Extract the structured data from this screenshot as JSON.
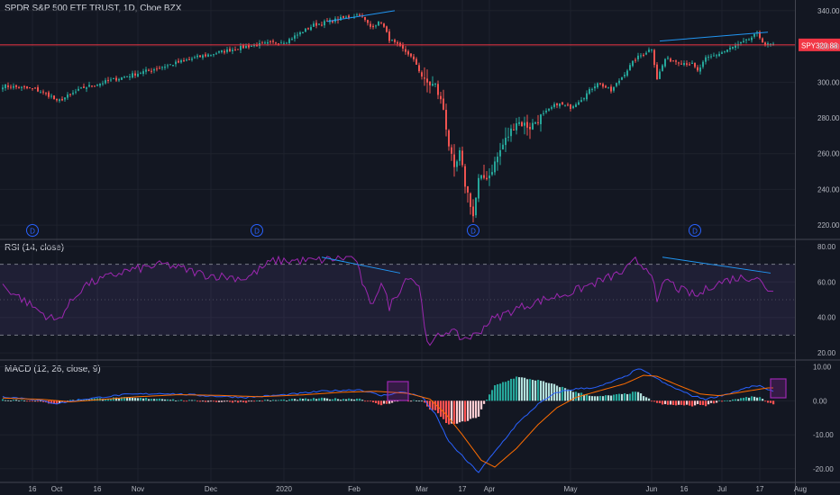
{
  "header": {
    "title": "SPDR S&P 500 ETF TRUST, 1D, Cboe BZX"
  },
  "price_label": {
    "symbol": "SPY",
    "value": "320.88"
  },
  "panes": {
    "rsi": {
      "title": "RSI (14, close)"
    },
    "macd": {
      "title": "MACD (12, 26, close, 9)"
    }
  },
  "colors": {
    "background": "#131722",
    "up": "#26a69a",
    "down": "#ef5350",
    "text": "#b2b5be",
    "trendline": "#2196f3",
    "rsi_line": "#9c27b0",
    "rsi_band": "#7e57c2",
    "macd_line": "#2962ff",
    "signal_line": "#ff6d00",
    "hist_up_strong": "#26a69a",
    "hist_up_weak": "#b2dfdb",
    "hist_down_strong": "#ff5252",
    "hist_down_weak": "#ffcdd2",
    "price_line": "#f23645",
    "dividend_marker": "#2962ff"
  },
  "chart_data": [
    {
      "type": "candlestick",
      "name": "price",
      "x_labels": [
        "16",
        "Oct",
        "16",
        "Nov",
        "Dec",
        "2020",
        "Feb",
        "Mar",
        "17",
        "Apr",
        "May",
        "Jun",
        "16",
        "Jul",
        "17",
        "Aug"
      ],
      "y_ticks": [
        "340.00",
        "320.00",
        "300.00",
        "280.00",
        "260.00",
        "240.00",
        "220.00"
      ],
      "ylim": [
        212,
        346
      ],
      "last_price": 320.88,
      "dividend_markers": [
        "D",
        "D",
        "D",
        "D"
      ],
      "keypoints": [
        [
          0,
          298
        ],
        [
          12,
          296
        ],
        [
          18,
          292
        ],
        [
          20,
          289
        ],
        [
          30,
          297
        ],
        [
          45,
          303
        ],
        [
          60,
          309
        ],
        [
          72,
          314
        ],
        [
          90,
          320
        ],
        [
          105,
          323
        ],
        [
          115,
          332
        ],
        [
          132,
          338
        ],
        [
          136,
          331
        ],
        [
          140,
          334
        ],
        [
          143,
          324
        ],
        [
          150,
          316
        ],
        [
          153,
          310
        ],
        [
          156,
          300
        ],
        [
          160,
          298
        ],
        [
          163,
          285
        ],
        [
          165,
          265
        ],
        [
          167,
          250
        ],
        [
          169,
          260
        ],
        [
          171,
          243
        ],
        [
          173,
          232
        ],
        [
          174,
          225
        ],
        [
          176,
          245
        ],
        [
          180,
          248
        ],
        [
          185,
          265
        ],
        [
          190,
          278
        ],
        [
          195,
          275
        ],
        [
          200,
          282
        ],
        [
          205,
          288
        ],
        [
          210,
          286
        ],
        [
          215,
          292
        ],
        [
          220,
          300
        ],
        [
          225,
          295
        ],
        [
          230,
          305
        ],
        [
          234,
          313
        ],
        [
          240,
          319
        ],
        [
          242,
          302
        ],
        [
          245,
          313
        ],
        [
          255,
          310
        ],
        [
          257,
          306
        ],
        [
          260,
          313
        ],
        [
          265,
          316
        ],
        [
          275,
          323
        ],
        [
          279,
          327
        ],
        [
          282,
          321
        ]
      ]
    },
    {
      "type": "line",
      "name": "RSI",
      "y_ticks": [
        "80.00",
        "60.00",
        "40.00",
        "20.00"
      ],
      "ylim": [
        16,
        84
      ],
      "levels": [
        70,
        50,
        30
      ],
      "keypoints": [
        [
          0,
          58
        ],
        [
          15,
          42
        ],
        [
          20,
          38
        ],
        [
          30,
          58
        ],
        [
          45,
          66
        ],
        [
          60,
          70
        ],
        [
          75,
          64
        ],
        [
          90,
          62
        ],
        [
          100,
          72
        ],
        [
          115,
          72
        ],
        [
          130,
          74
        ],
        [
          136,
          46
        ],
        [
          140,
          60
        ],
        [
          143,
          46
        ],
        [
          150,
          64
        ],
        [
          154,
          58
        ],
        [
          156,
          36
        ],
        [
          158,
          22
        ],
        [
          160,
          28
        ],
        [
          165,
          33
        ],
        [
          170,
          28
        ],
        [
          175,
          30
        ],
        [
          180,
          38
        ],
        [
          190,
          45
        ],
        [
          200,
          50
        ],
        [
          210,
          54
        ],
        [
          220,
          60
        ],
        [
          230,
          66
        ],
        [
          234,
          72
        ],
        [
          240,
          66
        ],
        [
          242,
          47
        ],
        [
          245,
          62
        ],
        [
          250,
          56
        ],
        [
          257,
          52
        ],
        [
          262,
          58
        ],
        [
          270,
          62
        ],
        [
          279,
          63
        ],
        [
          282,
          56
        ]
      ]
    },
    {
      "type": "line+bar",
      "name": "MACD",
      "y_ticks": [
        "10.00",
        "0.00",
        "-10.00",
        "-20.00"
      ],
      "ylim": [
        -24,
        12
      ],
      "macd_keypoints": [
        [
          0,
          1.2
        ],
        [
          10,
          0.6
        ],
        [
          20,
          -0.8
        ],
        [
          30,
          0.5
        ],
        [
          45,
          1.8
        ],
        [
          60,
          2.2
        ],
        [
          75,
          1.5
        ],
        [
          90,
          1.0
        ],
        [
          105,
          1.8
        ],
        [
          118,
          2.8
        ],
        [
          132,
          3.3
        ],
        [
          140,
          1.5
        ],
        [
          148,
          2.6
        ],
        [
          155,
          1.2
        ],
        [
          160,
          -4
        ],
        [
          165,
          -12
        ],
        [
          172,
          -18
        ],
        [
          176,
          -21
        ],
        [
          182,
          -15
        ],
        [
          190,
          -7
        ],
        [
          198,
          -1
        ],
        [
          205,
          2.5
        ],
        [
          212,
          3.5
        ],
        [
          220,
          4
        ],
        [
          230,
          7
        ],
        [
          235,
          9.5
        ],
        [
          240,
          7.5
        ],
        [
          245,
          5
        ],
        [
          255,
          1.5
        ],
        [
          260,
          0.5
        ],
        [
          268,
          2
        ],
        [
          276,
          4
        ],
        [
          280,
          4.5
        ],
        [
          283,
          3
        ]
      ],
      "signal_keypoints": [
        [
          0,
          0.8
        ],
        [
          15,
          0.4
        ],
        [
          25,
          -0.3
        ],
        [
          35,
          0.3
        ],
        [
          50,
          1.2
        ],
        [
          65,
          1.8
        ],
        [
          80,
          1.6
        ],
        [
          95,
          1.2
        ],
        [
          110,
          1.7
        ],
        [
          125,
          2.5
        ],
        [
          138,
          2.8
        ],
        [
          150,
          2.2
        ],
        [
          158,
          0.5
        ],
        [
          164,
          -4
        ],
        [
          170,
          -10
        ],
        [
          177,
          -17.5
        ],
        [
          182,
          -19.5
        ],
        [
          190,
          -14
        ],
        [
          198,
          -7
        ],
        [
          205,
          -2
        ],
        [
          212,
          1
        ],
        [
          220,
          2.8
        ],
        [
          230,
          5
        ],
        [
          237,
          7.5
        ],
        [
          242,
          7.2
        ],
        [
          250,
          4.5
        ],
        [
          258,
          2
        ],
        [
          265,
          1.5
        ],
        [
          275,
          2.8
        ],
        [
          283,
          3.8
        ]
      ]
    }
  ]
}
